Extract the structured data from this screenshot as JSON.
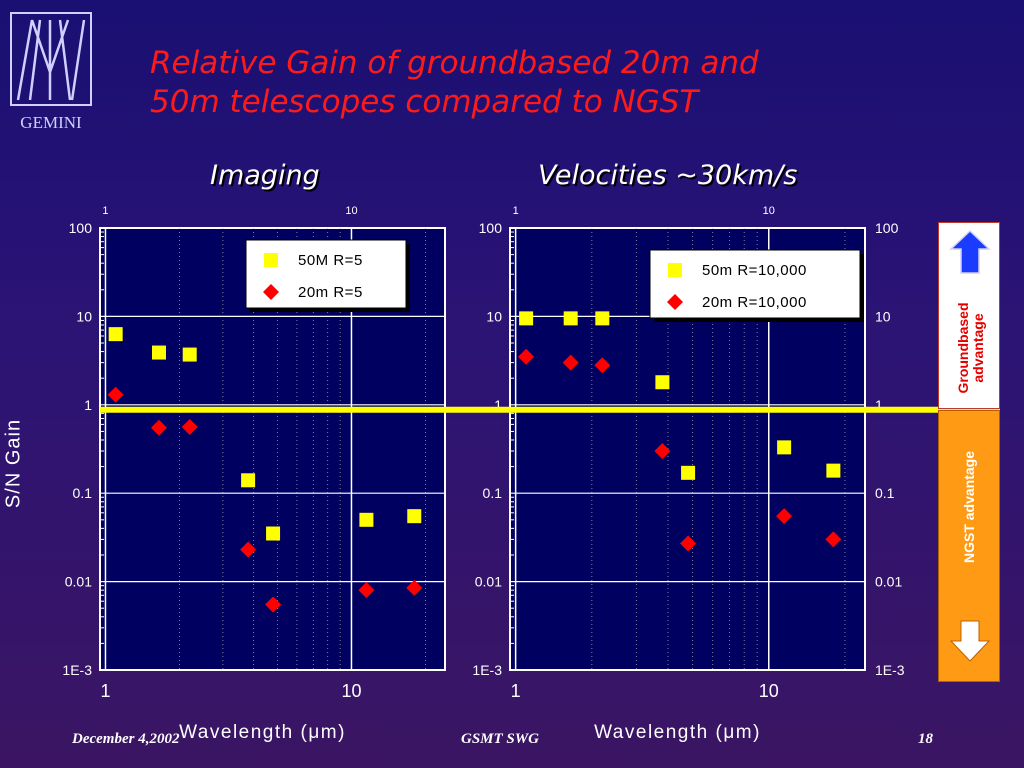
{
  "slide": {
    "title_line1": "Relative Gain of groundbased 20m and",
    "title_line2": "50m telescopes compared to NGST",
    "subtitle_left": "Imaging",
    "subtitle_right": "Velocities ~30km/s",
    "logo_text": "GEMINI",
    "y_label": "S/N Gain",
    "footer_left": "December 4,2002",
    "footer_center": "GSMT SWG",
    "footer_right": "18",
    "advantage_up_label": "Groundbased advantage",
    "advantage_down_label": "NGST advantage",
    "colors": {
      "title": "#ff1a1a",
      "marker_50m": "#ffff00",
      "marker_20m": "#ff0000",
      "unity_line": "#ffff00",
      "up_arrow": "#1a3cff",
      "down_arrow": "#ffffff",
      "plot_background": "#000060"
    }
  },
  "chart_data": [
    {
      "type": "scatter",
      "title": "Imaging",
      "xlabel": "Wavelength (μm)",
      "ylabel": "S/N Gain",
      "xscale": "log",
      "yscale": "log",
      "xlim": [
        0.95,
        24
      ],
      "ylim": [
        0.001,
        100
      ],
      "x_ticks": [
        "1",
        "10"
      ],
      "y_ticks": [
        "100",
        "10",
        "1",
        "0.1",
        "0.01",
        "1E-3"
      ],
      "top_ticks": [
        "1",
        "10"
      ],
      "legend_position": "top-right",
      "series": [
        {
          "name": "50M  R=5",
          "marker": "square",
          "color": "#ffff00",
          "x": [
            1.1,
            1.65,
            2.2,
            3.8,
            4.8,
            11.5,
            18.0
          ],
          "y": [
            6.3,
            3.9,
            3.7,
            0.14,
            0.035,
            0.05,
            0.055
          ]
        },
        {
          "name": "20m R=5",
          "marker": "diamond",
          "color": "#ff0000",
          "x": [
            1.1,
            1.65,
            2.2,
            3.8,
            4.8,
            11.5,
            18.0
          ],
          "y": [
            1.3,
            0.55,
            0.56,
            0.023,
            0.0055,
            0.008,
            0.0085
          ]
        }
      ]
    },
    {
      "type": "scatter",
      "title": "Velocities ~30km/s",
      "xlabel": "Wavelength (μm)",
      "ylabel": "S/N Gain",
      "xscale": "log",
      "yscale": "log",
      "xlim": [
        0.95,
        24
      ],
      "ylim": [
        0.001,
        100
      ],
      "x_ticks": [
        "1",
        "10"
      ],
      "y_ticks": [
        "100",
        "10",
        "1",
        "0.1",
        "0.01",
        "1E-3"
      ],
      "top_ticks": [
        "1",
        "10"
      ],
      "legend_position": "top-right",
      "series": [
        {
          "name": "50m R=10,000",
          "marker": "square",
          "color": "#ffff00",
          "x": [
            1.1,
            1.65,
            2.2,
            3.8,
            4.8,
            11.5,
            18.0
          ],
          "y": [
            9.5,
            9.5,
            9.5,
            1.8,
            0.17,
            0.33,
            0.18
          ]
        },
        {
          "name": "20m R=10,000",
          "marker": "diamond",
          "color": "#ff0000",
          "x": [
            1.1,
            1.65,
            2.2,
            3.8,
            4.8,
            11.5,
            18.0
          ],
          "y": [
            3.5,
            3.0,
            2.8,
            0.3,
            0.027,
            0.055,
            0.03
          ]
        }
      ]
    }
  ]
}
